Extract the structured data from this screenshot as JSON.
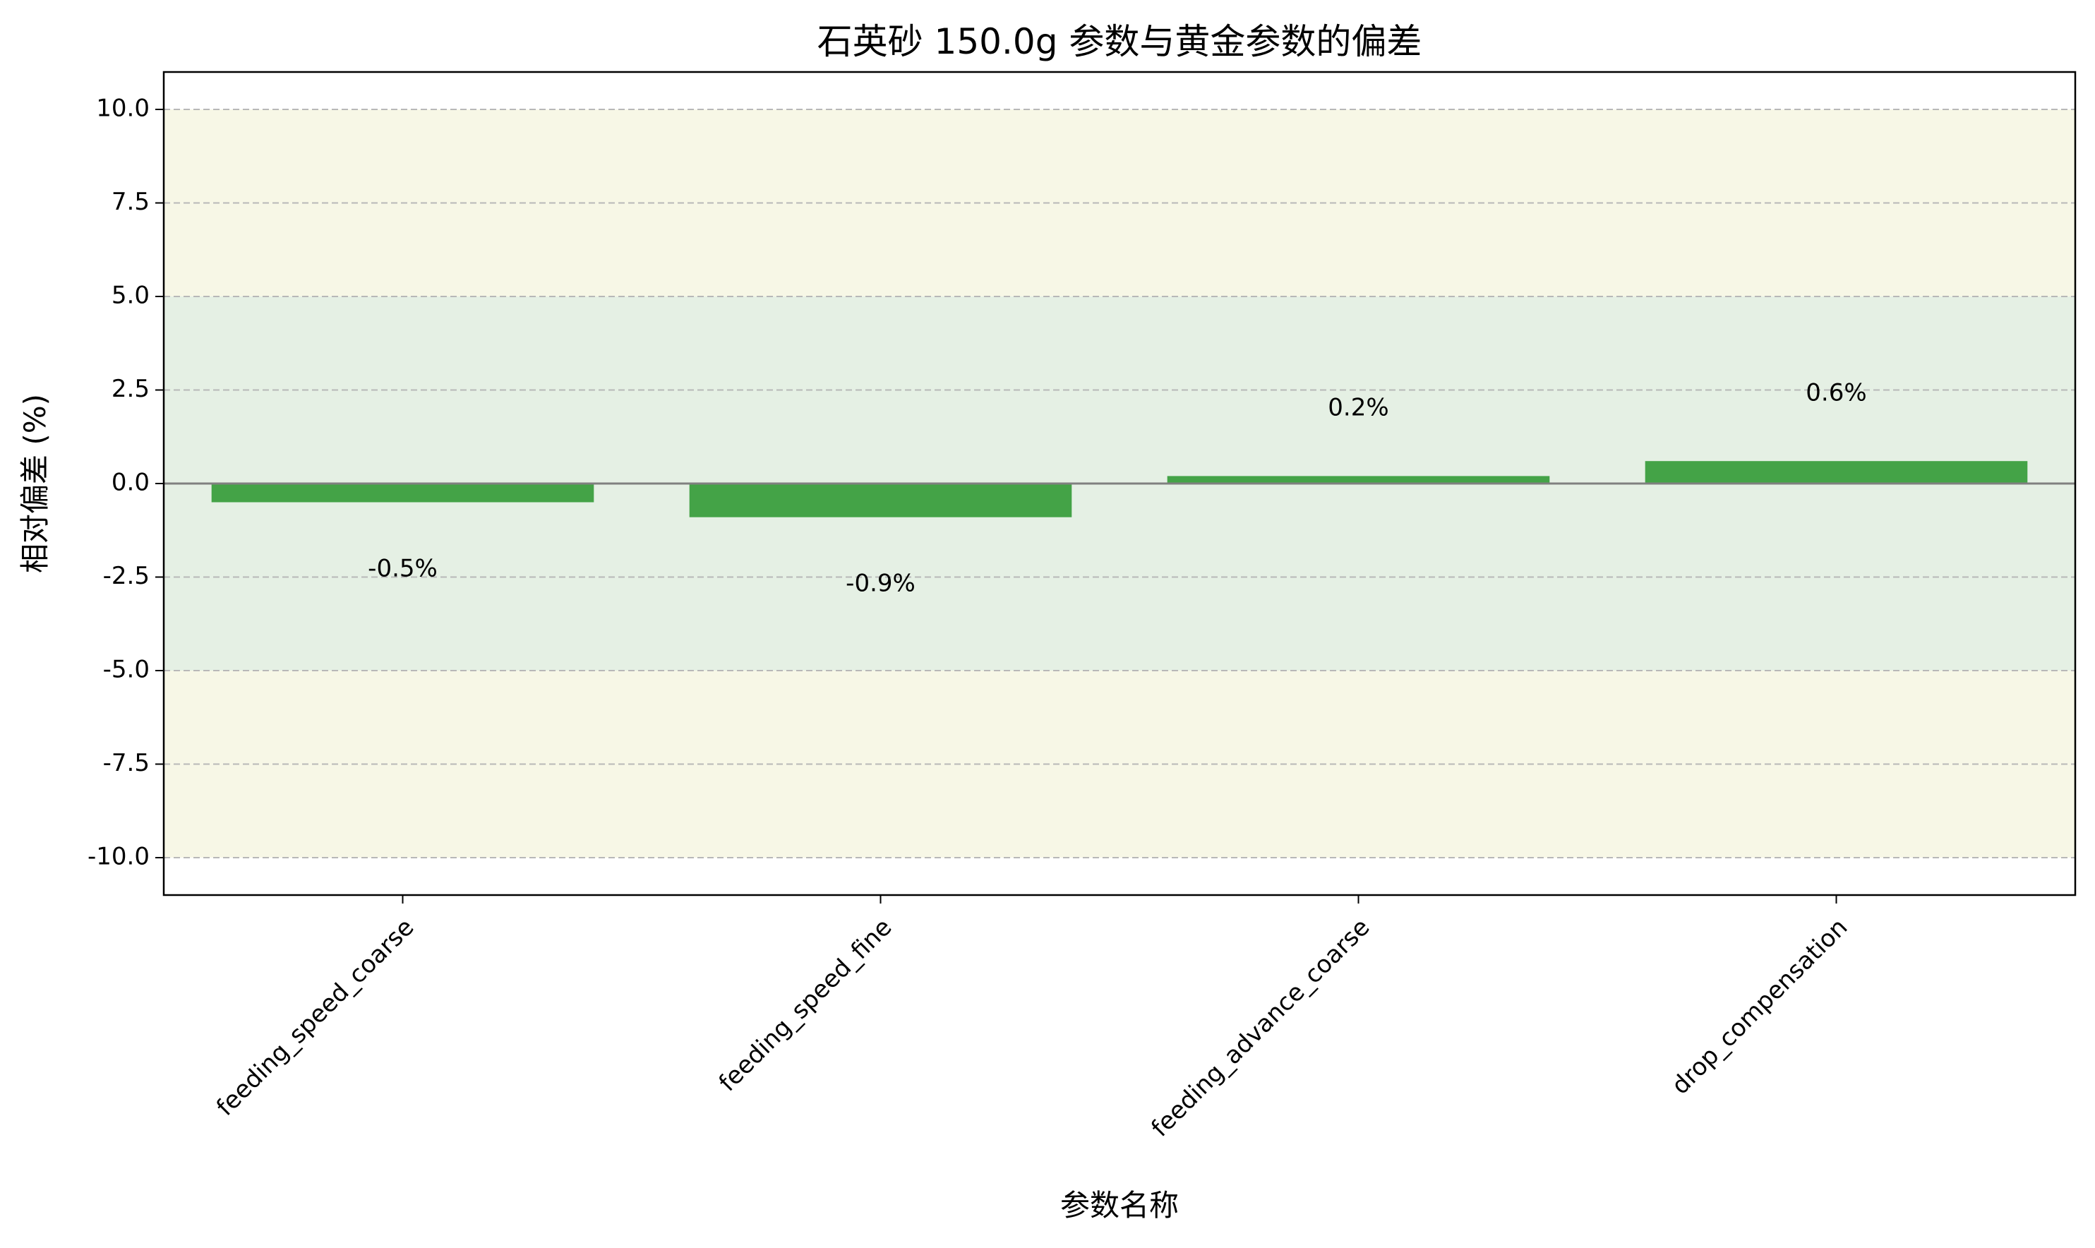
{
  "chart_data": {
    "type": "bar",
    "title": "石英砂 150.0g 参数与黄金参数的偏差",
    "xlabel": "参数名称",
    "ylabel": "相对偏差 (%)",
    "categories": [
      "feeding_speed_coarse",
      "feeding_speed_fine",
      "feeding_advance_coarse",
      "drop_compensation"
    ],
    "values": [
      -0.5,
      -0.9,
      0.2,
      0.6
    ],
    "value_labels": [
      "-0.5%",
      "-0.9%",
      "0.2%",
      "0.6%"
    ],
    "ylim": [
      -11,
      11
    ],
    "yticks": [
      10.0,
      7.5,
      5.0,
      2.5,
      0.0,
      -2.5,
      -5.0,
      -7.5,
      -10.0
    ],
    "ytick_labels": [
      "10.0",
      "7.5",
      "5.0",
      "2.5",
      "0.0",
      "-2.5",
      "-5.0",
      "-7.5",
      "-10.0"
    ],
    "grid": "y-dashed",
    "bands": [
      {
        "from": 5,
        "to": 10,
        "color": "#f7f7e6"
      },
      {
        "from": -10,
        "to": -5,
        "color": "#f7f7e6"
      },
      {
        "from": -5,
        "to": 5,
        "color": "#e5f0e4"
      }
    ],
    "bar_color": "#44a347",
    "zero_line_color": "#808080"
  }
}
